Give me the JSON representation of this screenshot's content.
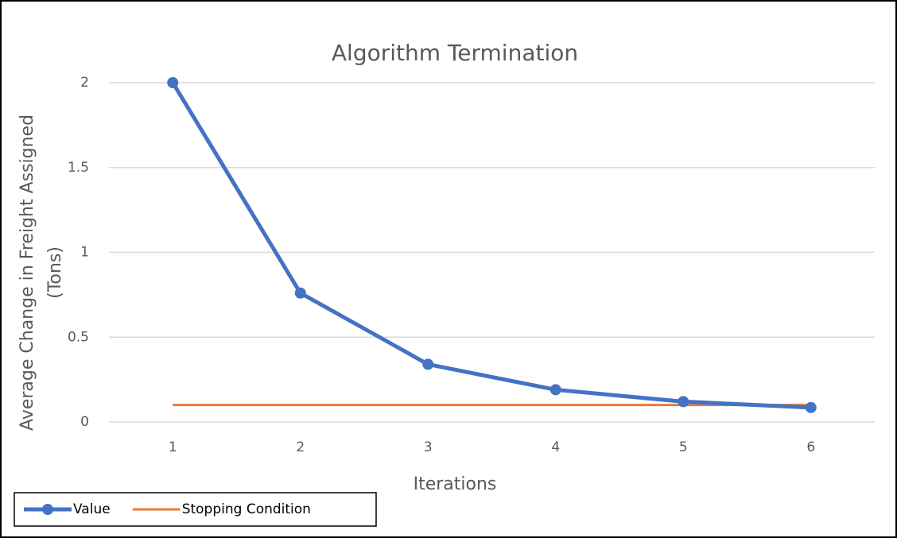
{
  "chart_data": {
    "type": "line",
    "title": "Algorithm Termination",
    "xlabel": "Iterations",
    "ylabel": [
      "Average Change in Freight Assigned",
      "(Tons)"
    ],
    "categories": [
      "1",
      "2",
      "3",
      "4",
      "5",
      "6"
    ],
    "series": [
      {
        "name": "Value",
        "color": "#4472c4",
        "values": [
          2.0,
          0.76,
          0.34,
          0.19,
          0.12,
          0.085
        ],
        "marker": true
      },
      {
        "name": "Stopping Condition",
        "color": "#ed7d31",
        "values": [
          0.1,
          0.1,
          0.1,
          0.1,
          0.1,
          0.1
        ],
        "marker": false
      }
    ],
    "ylim": [
      0,
      2
    ],
    "yticks": [
      0,
      0.5,
      1,
      1.5,
      2
    ],
    "grid": true,
    "legend": "bottom-left"
  }
}
